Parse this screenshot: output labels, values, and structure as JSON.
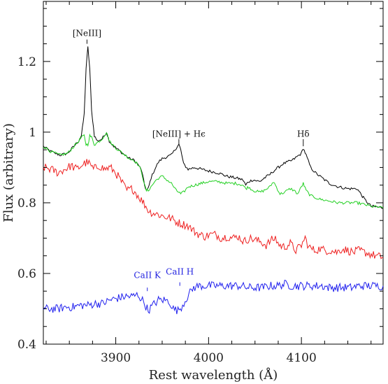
{
  "chart_data": {
    "type": "line",
    "title": "",
    "xlabel": "Rest wavelength (Å)",
    "ylabel": "Flux (arbitrary)",
    "xlim": [
      3822,
      4188
    ],
    "ylim": [
      0.4,
      1.37
    ],
    "x_ticks": [
      3900,
      4000,
      4100
    ],
    "y_ticks": [
      0.4,
      0.6,
      0.8,
      1,
      1.2
    ],
    "y_tick_labels": [
      "0.4",
      "0.6",
      "0.8",
      "1",
      "1.2"
    ],
    "series": [
      {
        "color": "#000000",
        "points": [
          [
            3822,
            0.96
          ],
          [
            3830,
            0.945
          ],
          [
            3840,
            0.935
          ],
          [
            3848,
            0.94
          ],
          [
            3855,
            0.96
          ],
          [
            3860,
            0.975
          ],
          [
            3863,
            0.99
          ],
          [
            3866,
            1.05
          ],
          [
            3868,
            1.18
          ],
          [
            3870,
            1.24
          ],
          [
            3872,
            1.18
          ],
          [
            3874,
            1.06
          ],
          [
            3877,
            0.99
          ],
          [
            3880,
            0.975
          ],
          [
            3885,
            0.98
          ],
          [
            3890,
            1.0
          ],
          [
            3893,
            0.975
          ],
          [
            3898,
            0.96
          ],
          [
            3905,
            0.945
          ],
          [
            3910,
            0.935
          ],
          [
            3915,
            0.925
          ],
          [
            3920,
            0.92
          ],
          [
            3925,
            0.905
          ],
          [
            3928,
            0.89
          ],
          [
            3931,
            0.85
          ],
          [
            3933,
            0.835
          ],
          [
            3935,
            0.84
          ],
          [
            3938,
            0.87
          ],
          [
            3942,
            0.895
          ],
          [
            3946,
            0.915
          ],
          [
            3950,
            0.925
          ],
          [
            3955,
            0.93
          ],
          [
            3960,
            0.935
          ],
          [
            3965,
            0.955
          ],
          [
            3968,
            0.965
          ],
          [
            3970,
            0.95
          ],
          [
            3973,
            0.91
          ],
          [
            3978,
            0.895
          ],
          [
            3985,
            0.9
          ],
          [
            3992,
            0.895
          ],
          [
            4000,
            0.89
          ],
          [
            4010,
            0.885
          ],
          [
            4020,
            0.875
          ],
          [
            4030,
            0.87
          ],
          [
            4037,
            0.865
          ],
          [
            4040,
            0.85
          ],
          [
            4043,
            0.86
          ],
          [
            4048,
            0.865
          ],
          [
            4055,
            0.86
          ],
          [
            4060,
            0.87
          ],
          [
            4066,
            0.88
          ],
          [
            4070,
            0.89
          ],
          [
            4075,
            0.9
          ],
          [
            4080,
            0.91
          ],
          [
            4085,
            0.915
          ],
          [
            4090,
            0.92
          ],
          [
            4095,
            0.93
          ],
          [
            4100,
            0.94
          ],
          [
            4102,
            0.955
          ],
          [
            4105,
            0.935
          ],
          [
            4110,
            0.9
          ],
          [
            4115,
            0.885
          ],
          [
            4120,
            0.875
          ],
          [
            4125,
            0.865
          ],
          [
            4130,
            0.855
          ],
          [
            4140,
            0.845
          ],
          [
            4150,
            0.84
          ],
          [
            4160,
            0.84
          ],
          [
            4168,
            0.81
          ],
          [
            4175,
            0.79
          ],
          [
            4182,
            0.788
          ],
          [
            4188,
            0.785
          ]
        ]
      },
      {
        "color": "#22d022",
        "points": [
          [
            3822,
            0.96
          ],
          [
            3830,
            0.945
          ],
          [
            3840,
            0.935
          ],
          [
            3848,
            0.94
          ],
          [
            3855,
            0.96
          ],
          [
            3860,
            0.975
          ],
          [
            3863,
            0.985
          ],
          [
            3866,
            0.99
          ],
          [
            3868,
            0.965
          ],
          [
            3870,
            0.965
          ],
          [
            3872,
            0.99
          ],
          [
            3874,
            0.985
          ],
          [
            3877,
            0.965
          ],
          [
            3880,
            0.97
          ],
          [
            3885,
            0.98
          ],
          [
            3890,
            1.0
          ],
          [
            3893,
            0.975
          ],
          [
            3898,
            0.96
          ],
          [
            3905,
            0.945
          ],
          [
            3910,
            0.935
          ],
          [
            3915,
            0.925
          ],
          [
            3920,
            0.92
          ],
          [
            3925,
            0.905
          ],
          [
            3928,
            0.885
          ],
          [
            3931,
            0.85
          ],
          [
            3933,
            0.835
          ],
          [
            3935,
            0.835
          ],
          [
            3938,
            0.845
          ],
          [
            3942,
            0.86
          ],
          [
            3946,
            0.87
          ],
          [
            3950,
            0.875
          ],
          [
            3955,
            0.865
          ],
          [
            3960,
            0.855
          ],
          [
            3965,
            0.835
          ],
          [
            3968,
            0.83
          ],
          [
            3970,
            0.825
          ],
          [
            3973,
            0.83
          ],
          [
            3978,
            0.845
          ],
          [
            3985,
            0.85
          ],
          [
            3992,
            0.855
          ],
          [
            4000,
            0.86
          ],
          [
            4010,
            0.86
          ],
          [
            4020,
            0.855
          ],
          [
            4030,
            0.855
          ],
          [
            4037,
            0.85
          ],
          [
            4040,
            0.84
          ],
          [
            4043,
            0.845
          ],
          [
            4048,
            0.835
          ],
          [
            4055,
            0.83
          ],
          [
            4060,
            0.835
          ],
          [
            4066,
            0.845
          ],
          [
            4070,
            0.86
          ],
          [
            4073,
            0.845
          ],
          [
            4077,
            0.825
          ],
          [
            4082,
            0.83
          ],
          [
            4088,
            0.84
          ],
          [
            4092,
            0.835
          ],
          [
            4096,
            0.825
          ],
          [
            4100,
            0.845
          ],
          [
            4102,
            0.855
          ],
          [
            4105,
            0.835
          ],
          [
            4110,
            0.82
          ],
          [
            4115,
            0.815
          ],
          [
            4120,
            0.81
          ],
          [
            4130,
            0.805
          ],
          [
            4140,
            0.8
          ],
          [
            4150,
            0.8
          ],
          [
            4160,
            0.8
          ],
          [
            4168,
            0.795
          ],
          [
            4175,
            0.79
          ],
          [
            4182,
            0.788
          ],
          [
            4188,
            0.785
          ]
        ]
      },
      {
        "color": "#ee2020",
        "points": [
          [
            3822,
            0.9
          ],
          [
            3830,
            0.895
          ],
          [
            3838,
            0.885
          ],
          [
            3845,
            0.895
          ],
          [
            3852,
            0.905
          ],
          [
            3858,
            0.895
          ],
          [
            3865,
            0.91
          ],
          [
            3870,
            0.915
          ],
          [
            3876,
            0.895
          ],
          [
            3882,
            0.905
          ],
          [
            3888,
            0.895
          ],
          [
            3894,
            0.9
          ],
          [
            3900,
            0.885
          ],
          [
            3906,
            0.86
          ],
          [
            3912,
            0.835
          ],
          [
            3918,
            0.84
          ],
          [
            3924,
            0.82
          ],
          [
            3930,
            0.8
          ],
          [
            3936,
            0.775
          ],
          [
            3942,
            0.77
          ],
          [
            3948,
            0.765
          ],
          [
            3954,
            0.76
          ],
          [
            3960,
            0.755
          ],
          [
            3966,
            0.745
          ],
          [
            3972,
            0.74
          ],
          [
            3978,
            0.735
          ],
          [
            3984,
            0.72
          ],
          [
            3990,
            0.71
          ],
          [
            3996,
            0.705
          ],
          [
            4002,
            0.71
          ],
          [
            4008,
            0.71
          ],
          [
            4014,
            0.7
          ],
          [
            4020,
            0.705
          ],
          [
            4026,
            0.7
          ],
          [
            4032,
            0.705
          ],
          [
            4038,
            0.69
          ],
          [
            4044,
            0.7
          ],
          [
            4050,
            0.695
          ],
          [
            4056,
            0.69
          ],
          [
            4062,
            0.68
          ],
          [
            4068,
            0.695
          ],
          [
            4072,
            0.7
          ],
          [
            4076,
            0.68
          ],
          [
            4082,
            0.675
          ],
          [
            4088,
            0.685
          ],
          [
            4094,
            0.665
          ],
          [
            4100,
            0.68
          ],
          [
            4104,
            0.7
          ],
          [
            4108,
            0.675
          ],
          [
            4114,
            0.665
          ],
          [
            4120,
            0.67
          ],
          [
            4126,
            0.665
          ],
          [
            4132,
            0.665
          ],
          [
            4138,
            0.66
          ],
          [
            4144,
            0.67
          ],
          [
            4150,
            0.665
          ],
          [
            4156,
            0.66
          ],
          [
            4162,
            0.665
          ],
          [
            4168,
            0.66
          ],
          [
            4174,
            0.655
          ],
          [
            4180,
            0.65
          ],
          [
            4188,
            0.645
          ]
        ]
      },
      {
        "color": "#2020ee",
        "points": [
          [
            3822,
            0.5
          ],
          [
            3830,
            0.5
          ],
          [
            3838,
            0.5
          ],
          [
            3846,
            0.505
          ],
          [
            3854,
            0.505
          ],
          [
            3862,
            0.51
          ],
          [
            3870,
            0.51
          ],
          [
            3878,
            0.515
          ],
          [
            3886,
            0.515
          ],
          [
            3894,
            0.525
          ],
          [
            3902,
            0.53
          ],
          [
            3910,
            0.535
          ],
          [
            3918,
            0.535
          ],
          [
            3924,
            0.54
          ],
          [
            3930,
            0.52
          ],
          [
            3935,
            0.495
          ],
          [
            3940,
            0.51
          ],
          [
            3946,
            0.525
          ],
          [
            3952,
            0.525
          ],
          [
            3958,
            0.52
          ],
          [
            3962,
            0.5
          ],
          [
            3967,
            0.495
          ],
          [
            3972,
            0.51
          ],
          [
            3976,
            0.53
          ],
          [
            3980,
            0.545
          ],
          [
            3984,
            0.56
          ],
          [
            3990,
            0.565
          ],
          [
            3996,
            0.565
          ],
          [
            4002,
            0.565
          ],
          [
            4010,
            0.565
          ],
          [
            4018,
            0.565
          ],
          [
            4026,
            0.565
          ],
          [
            4034,
            0.565
          ],
          [
            4042,
            0.56
          ],
          [
            4050,
            0.56
          ],
          [
            4058,
            0.56
          ],
          [
            4066,
            0.565
          ],
          [
            4074,
            0.565
          ],
          [
            4082,
            0.57
          ],
          [
            4090,
            0.565
          ],
          [
            4098,
            0.565
          ],
          [
            4106,
            0.565
          ],
          [
            4114,
            0.565
          ],
          [
            4122,
            0.565
          ],
          [
            4130,
            0.56
          ],
          [
            4138,
            0.56
          ],
          [
            4146,
            0.56
          ],
          [
            4154,
            0.56
          ],
          [
            4162,
            0.565
          ],
          [
            4170,
            0.565
          ],
          [
            4178,
            0.565
          ],
          [
            4188,
            0.565
          ]
        ]
      }
    ],
    "annotations": [
      {
        "text": "[NeIII]",
        "x": 3869,
        "y": 1.26,
        "marker_from": 1.25,
        "marker_to": 1.262,
        "color": "#111111"
      },
      {
        "text": "[NeIII] + Hϵ",
        "x": 3968,
        "y": 0.975,
        "marker_from": 0.965,
        "marker_to": 0.98,
        "color": "#111111"
      },
      {
        "text": "Hδ",
        "x": 4102,
        "y": 0.975,
        "marker_from": 0.96,
        "marker_to": 0.98,
        "color": "#111111"
      },
      {
        "text": "CaII K",
        "x": 3934,
        "y": 0.575,
        "marker_from": 0.55,
        "marker_to": 0.56,
        "color": "#2020e0"
      },
      {
        "text": "CaII H",
        "x": 3969,
        "y": 0.585,
        "marker_from": 0.565,
        "marker_to": 0.575,
        "color": "#2020e0"
      }
    ]
  }
}
